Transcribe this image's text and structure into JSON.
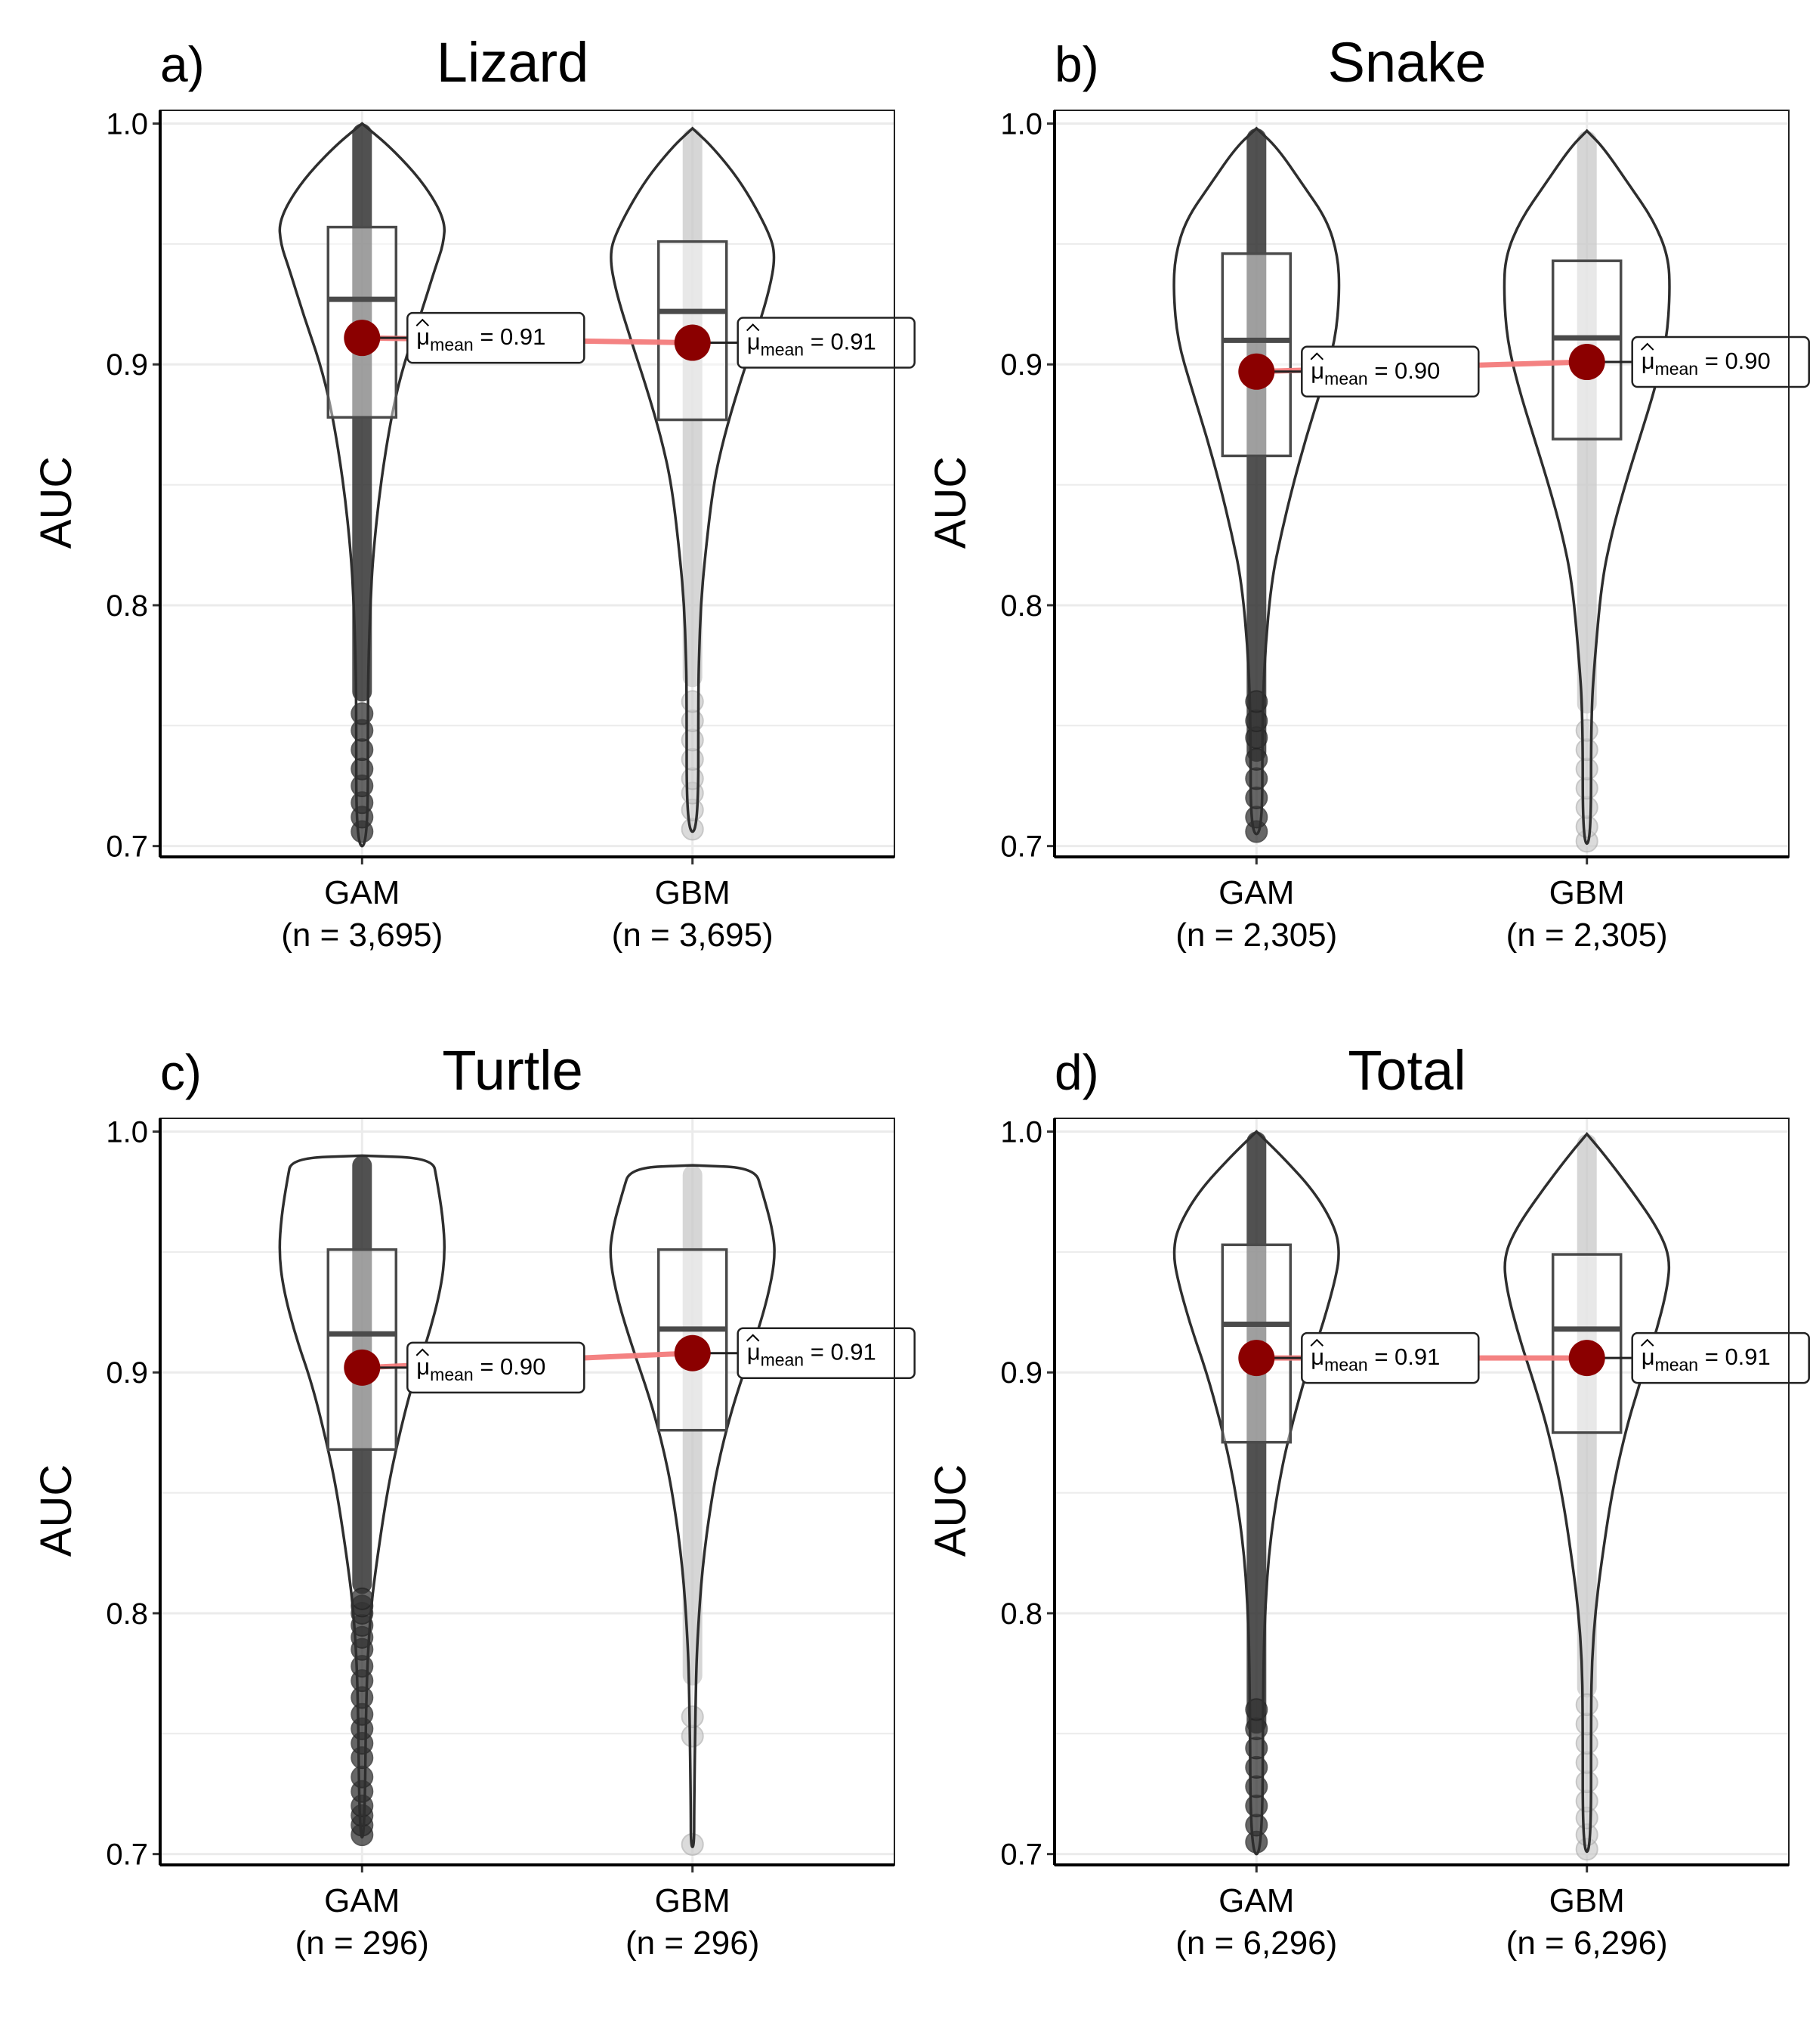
{
  "chart_data": [
    {
      "type": "violin",
      "panel_label": "a)",
      "title": "Lizard",
      "ylabel": "AUC",
      "ylim": [
        0.7,
        1.0
      ],
      "yticks": [
        "0.7",
        "0.8",
        "0.9",
        "1.0"
      ],
      "categories": [
        {
          "name": "GAM",
          "n_label": "(n = 3,695)",
          "mean": 0.911,
          "mean_label": "= 0.91",
          "q1": 0.878,
          "median": 0.927,
          "q3": 0.957,
          "whisker_low": 0.76,
          "whisker_high": 1.0,
          "min": 0.704,
          "max": 1.0
        },
        {
          "name": "GBM",
          "n_label": "(n = 3,695)",
          "mean": 0.909,
          "mean_label": "= 0.91",
          "q1": 0.877,
          "median": 0.922,
          "q3": 0.951,
          "whisker_low": 0.766,
          "whisker_high": 0.998,
          "min": 0.706,
          "max": 0.998
        }
      ]
    },
    {
      "type": "violin",
      "panel_label": "b)",
      "title": "Snake",
      "ylabel": "AUC",
      "ylim": [
        0.7,
        1.0
      ],
      "yticks": [
        "0.7",
        "0.8",
        "0.9",
        "1.0"
      ],
      "categories": [
        {
          "name": "GAM",
          "n_label": "(n = 2,305)",
          "mean": 0.897,
          "mean_label": "= 0.90",
          "q1": 0.862,
          "median": 0.91,
          "q3": 0.946,
          "whisker_low": 0.735,
          "whisker_high": 0.998,
          "min": 0.705,
          "max": 0.998
        },
        {
          "name": "GBM",
          "n_label": "(n = 2,305)",
          "mean": 0.901,
          "mean_label": "= 0.90",
          "q1": 0.869,
          "median": 0.911,
          "q3": 0.943,
          "whisker_low": 0.755,
          "whisker_high": 0.997,
          "min": 0.701,
          "max": 0.997
        }
      ]
    },
    {
      "type": "violin",
      "panel_label": "c)",
      "title": "Turtle",
      "ylabel": "AUC",
      "ylim": [
        0.7,
        1.0
      ],
      "yticks": [
        "0.7",
        "0.8",
        "0.9",
        "1.0"
      ],
      "categories": [
        {
          "name": "GAM",
          "n_label": "(n = 296)",
          "mean": 0.902,
          "mean_label": "= 0.90",
          "q1": 0.868,
          "median": 0.916,
          "q3": 0.951,
          "whisker_low": 0.808,
          "whisker_high": 0.99,
          "min": 0.707,
          "max": 0.99
        },
        {
          "name": "GBM",
          "n_label": "(n = 296)",
          "mean": 0.908,
          "mean_label": "= 0.91",
          "q1": 0.876,
          "median": 0.918,
          "q3": 0.951,
          "whisker_low": 0.77,
          "whisker_high": 0.986,
          "min": 0.703,
          "max": 0.986
        }
      ]
    },
    {
      "type": "violin",
      "panel_label": "d)",
      "title": "Total",
      "ylabel": "AUC",
      "ylim": [
        0.7,
        1.0
      ],
      "yticks": [
        "0.7",
        "0.8",
        "0.9",
        "1.0"
      ],
      "categories": [
        {
          "name": "GAM",
          "n_label": "(n = 6,296)",
          "mean": 0.906,
          "mean_label": "= 0.91",
          "q1": 0.871,
          "median": 0.92,
          "q3": 0.953,
          "whisker_low": 0.75,
          "whisker_high": 1.0,
          "min": 0.704,
          "max": 1.0
        },
        {
          "name": "GBM",
          "n_label": "(n = 6,296)",
          "mean": 0.906,
          "mean_label": "= 0.91",
          "q1": 0.875,
          "median": 0.918,
          "q3": 0.949,
          "whisker_low": 0.765,
          "whisker_high": 0.999,
          "min": 0.701,
          "max": 0.999
        }
      ]
    }
  ],
  "mean_symbol": "μ",
  "mean_subscript": "mean",
  "colors": {
    "gam_points": "#333333",
    "gbm_points": "#c8c8c8",
    "mean_point": "#8b0000",
    "mean_line": "#f47c7c",
    "violin_outline": "#2e2e2e",
    "grid": "#ebebeb"
  }
}
